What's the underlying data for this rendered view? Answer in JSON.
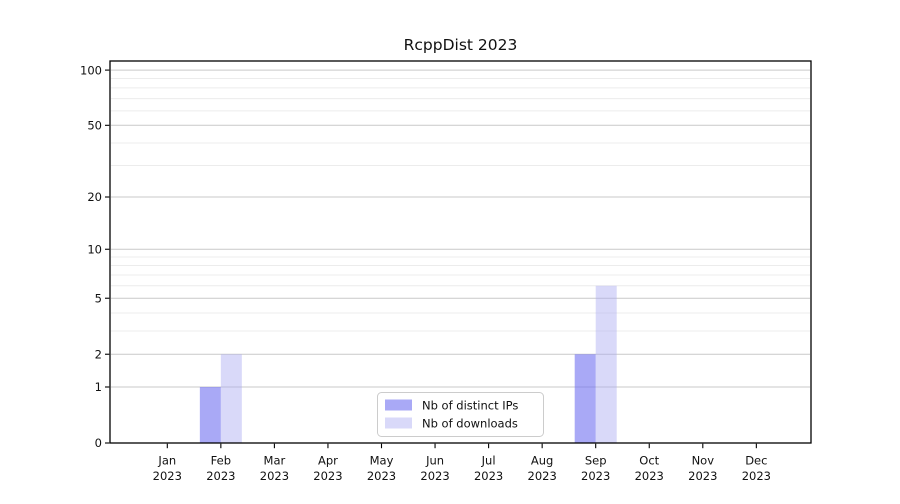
{
  "chart_data": {
    "type": "bar",
    "title": "RcppDist 2023",
    "categories": [
      "Jan",
      "Feb",
      "Mar",
      "Apr",
      "May",
      "Jun",
      "Jul",
      "Aug",
      "Sep",
      "Oct",
      "Nov",
      "Dec"
    ],
    "x_year_label": "2023",
    "series": [
      {
        "name": "Nb of distinct IPs",
        "color": "rgba(116,116,240,0.62)",
        "values": [
          0,
          1,
          0,
          0,
          0,
          0,
          0,
          0,
          2,
          0,
          0,
          0
        ]
      },
      {
        "name": "Nb of downloads",
        "color": "rgba(170,170,242,0.45)",
        "values": [
          0,
          2,
          0,
          0,
          0,
          0,
          0,
          0,
          6,
          0,
          0,
          0
        ]
      }
    ],
    "y_ticks": [
      0,
      1,
      2,
      5,
      10,
      20,
      50,
      100
    ],
    "y_minor_gridlines": [
      3,
      4,
      6,
      7,
      8,
      9,
      30,
      40,
      60,
      70,
      80,
      90
    ],
    "y_scale": "log1p",
    "ylim": [
      0,
      112
    ],
    "grid": "on",
    "legend_position": "lower-center-inside",
    "colors": {
      "major_grid": "#c9c9c9",
      "minor_grid": "#ececec",
      "axis": "#000000",
      "legend_border": "#cccccc",
      "legend_background": "rgba(255,255,255,0.85)"
    }
  }
}
